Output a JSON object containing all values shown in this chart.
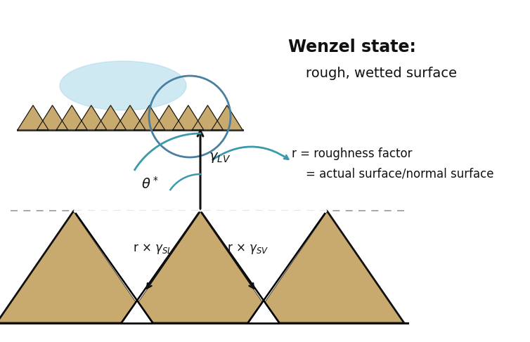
{
  "bg_color": "#ffffff",
  "triangle_color": "#c8a96e",
  "triangle_edge_color": "#111111",
  "water_color": "#a8d8e8",
  "water_alpha": 0.55,
  "circle_color": "#4a7fa0",
  "arrow_color": "#111111",
  "teal_color": "#3a9aaa",
  "dashed_color": "#999999",
  "text_wenzel": "Wenzel state:",
  "text_rough": "rough, wetted surface",
  "text_r_line1": "r = roughness factor",
  "text_r_line2": "= actual surface/normal surface",
  "figw": 7.54,
  "figh": 4.87,
  "dpi": 100
}
